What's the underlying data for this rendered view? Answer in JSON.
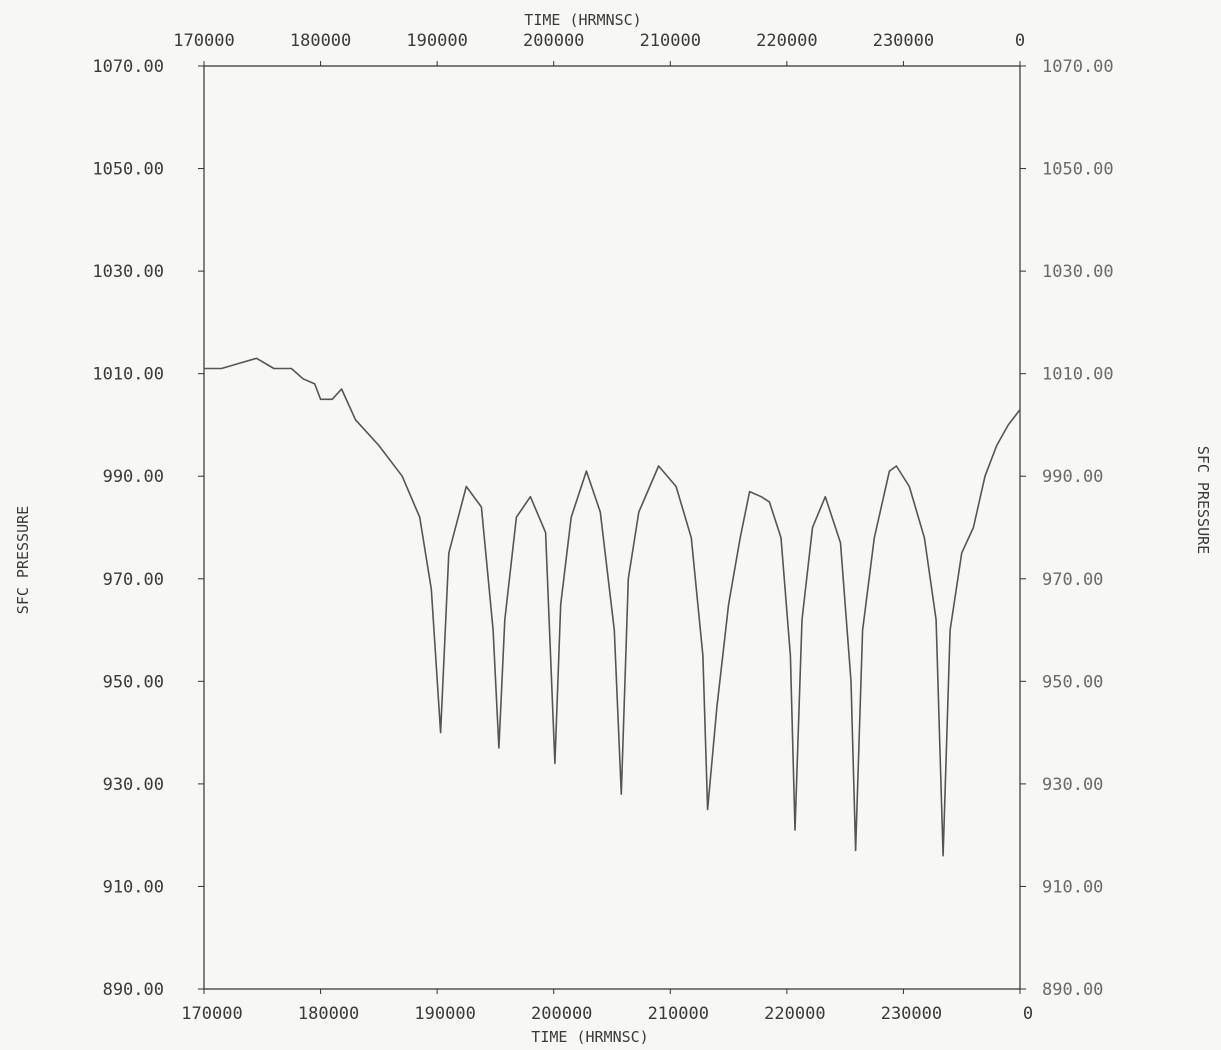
{
  "chart_data": {
    "type": "line",
    "title": "",
    "xlabel": "TIME (HRMNSC)",
    "ylabel": "SFC PRESSURE",
    "xlim": [
      170000,
      240000
    ],
    "ylim": [
      890,
      1070
    ],
    "x_ticks": [
      "170000",
      "180000",
      "190000",
      "200000",
      "210000",
      "220000",
      "230000",
      "0"
    ],
    "y_ticks": [
      "1070.00",
      "1050.00",
      "1030.00",
      "1010.00",
      "990.00",
      "970.00",
      "950.00",
      "930.00",
      "910.00",
      "890.00"
    ],
    "grid": false,
    "series": [
      {
        "points": [
          [
            170000,
            1011
          ],
          [
            171500,
            1011
          ],
          [
            173000,
            1012
          ],
          [
            174500,
            1013
          ],
          [
            176000,
            1011
          ],
          [
            177500,
            1011
          ],
          [
            178500,
            1009
          ],
          [
            179500,
            1008
          ],
          [
            180000,
            1005
          ],
          [
            181000,
            1005
          ],
          [
            181800,
            1007
          ],
          [
            183000,
            1001
          ],
          [
            185000,
            996
          ],
          [
            187000,
            990
          ],
          [
            188500,
            982
          ],
          [
            189500,
            968
          ],
          [
            190300,
            940
          ],
          [
            191000,
            975
          ],
          [
            192500,
            988
          ],
          [
            193800,
            984
          ],
          [
            194800,
            960
          ],
          [
            195300,
            937
          ],
          [
            195800,
            962
          ],
          [
            196800,
            982
          ],
          [
            198000,
            986
          ],
          [
            199300,
            979
          ],
          [
            200100,
            934
          ],
          [
            200600,
            965
          ],
          [
            201500,
            982
          ],
          [
            202800,
            991
          ],
          [
            204000,
            983
          ],
          [
            205200,
            960
          ],
          [
            205800,
            928
          ],
          [
            206400,
            970
          ],
          [
            207300,
            983
          ],
          [
            209000,
            992
          ],
          [
            210500,
            988
          ],
          [
            211800,
            978
          ],
          [
            212800,
            955
          ],
          [
            213200,
            925
          ],
          [
            214000,
            945
          ],
          [
            215000,
            965
          ],
          [
            216000,
            978
          ],
          [
            216800,
            987
          ],
          [
            217800,
            986
          ],
          [
            218500,
            985
          ],
          [
            219500,
            978
          ],
          [
            220300,
            955
          ],
          [
            220700,
            921
          ],
          [
            221300,
            962
          ],
          [
            222200,
            980
          ],
          [
            223300,
            986
          ],
          [
            224600,
            977
          ],
          [
            225500,
            950
          ],
          [
            225900,
            917
          ],
          [
            226500,
            960
          ],
          [
            227500,
            978
          ],
          [
            228800,
            991
          ],
          [
            229400,
            992
          ],
          [
            230500,
            988
          ],
          [
            231800,
            978
          ],
          [
            232800,
            962
          ],
          [
            233400,
            916
          ],
          [
            234000,
            960
          ],
          [
            235000,
            975
          ],
          [
            236000,
            980
          ],
          [
            237000,
            990
          ],
          [
            238000,
            996
          ],
          [
            239000,
            1000
          ],
          [
            240000,
            1003
          ]
        ]
      }
    ]
  },
  "axes": {
    "top_xlabel": "TIME (HRMNSC)",
    "bottom_xlabel": "TIME (HRMNSC)",
    "left_ylabel": "SFC PRESSURE",
    "right_ylabel": "SFC PRESSURE"
  },
  "colors": {
    "line": "#555555",
    "axis": "#333333",
    "background": "#f7f7f5"
  }
}
